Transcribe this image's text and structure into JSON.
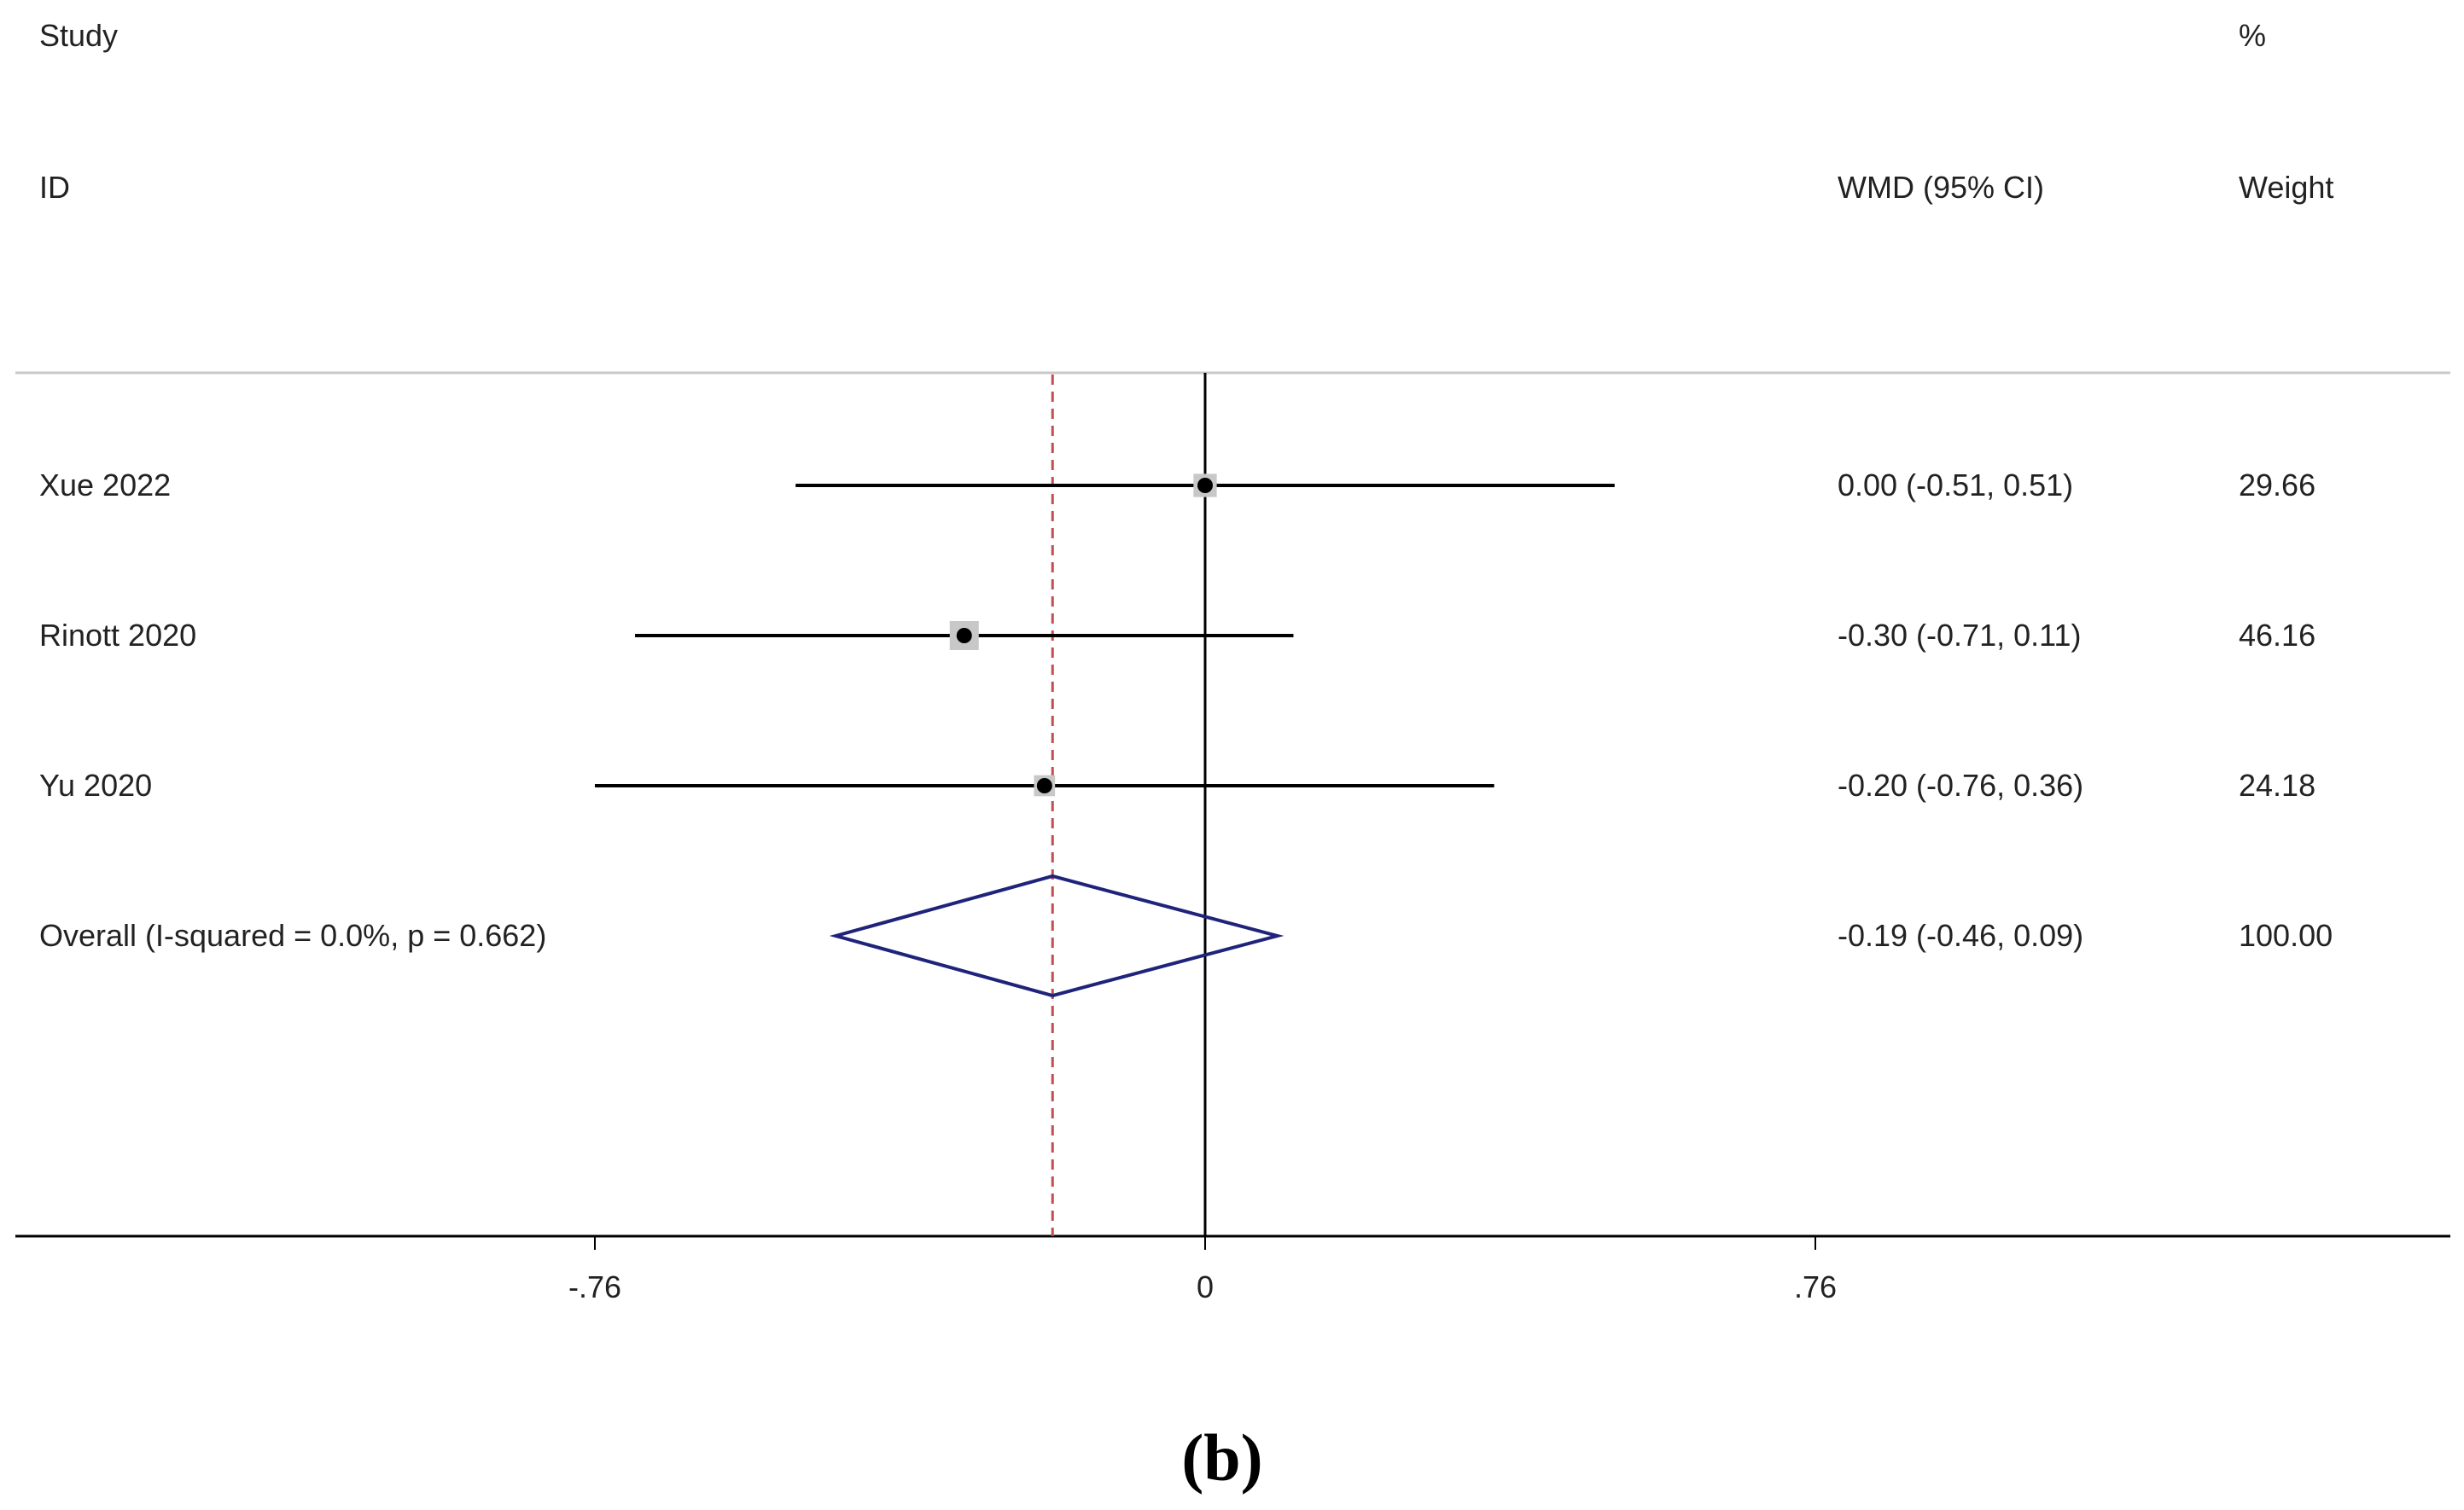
{
  "header": {
    "study_line1": "Study",
    "study_line2": "ID",
    "effect_label": "WMD (95% CI)",
    "weight_line1": "%",
    "weight_line2": "Weight"
  },
  "panel_label": "(b)",
  "colors": {
    "study_line": "#000000",
    "box_fill": "#c8c8c8",
    "diamond": "#1f237a",
    "null_line": "#000000",
    "pooled_line": "#c0504d",
    "header_rule": "#c8c8c8"
  },
  "chart_data": {
    "type": "forest",
    "measure": "WMD",
    "xlim": [
      -1.4,
      1.48
    ],
    "xticks": [
      {
        "value": -0.76,
        "label": "-.76"
      },
      {
        "value": 0,
        "label": "0"
      },
      {
        "value": 0.76,
        "label": ".76"
      }
    ],
    "null_value": 0,
    "studies": [
      {
        "label": "Xue 2022",
        "estimate": 0.0,
        "lower": -0.51,
        "upper": 0.51,
        "ci_text": "0.00 (-0.51, 0.51)",
        "weight_text": "29.66",
        "weight": 29.66
      },
      {
        "label": "Rinott 2020",
        "estimate": -0.3,
        "lower": -0.71,
        "upper": 0.11,
        "ci_text": "-0.30 (-0.71, 0.11)",
        "weight_text": "46.16",
        "weight": 46.16
      },
      {
        "label": "Yu 2020",
        "estimate": -0.2,
        "lower": -0.76,
        "upper": 0.36,
        "ci_text": "-0.20 (-0.76, 0.36)",
        "weight_text": "24.18",
        "weight": 24.18
      }
    ],
    "overall": {
      "label": "Overall  (I-squared = 0.0%, p = 0.662)",
      "estimate": -0.19,
      "lower": -0.46,
      "upper": 0.09,
      "ci_text": "-0.19 (-0.46, 0.09)",
      "weight_text": "100.00"
    }
  }
}
